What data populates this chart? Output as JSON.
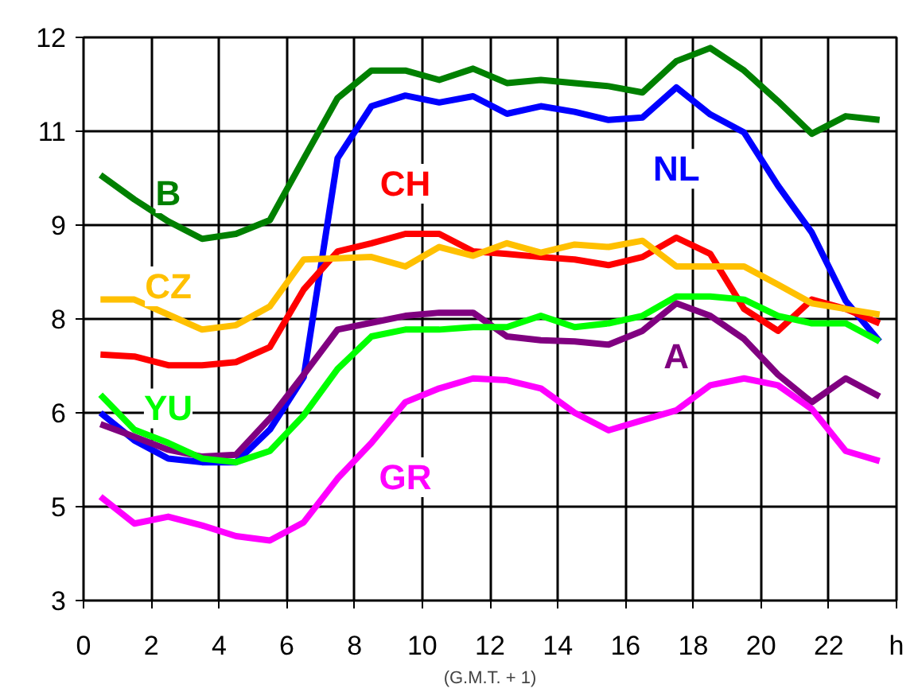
{
  "chart_data": {
    "type": "line",
    "xlabel": "(G.M.T. + 1)",
    "x": [
      0.5,
      1.5,
      2.5,
      3.5,
      4.5,
      5.5,
      6.5,
      7.5,
      8.5,
      9.5,
      10.5,
      11.5,
      12.5,
      13.5,
      14.5,
      15.5,
      16.5,
      17.5,
      18.5,
      19.5,
      20.5,
      21.5,
      22.5,
      23.5
    ],
    "xlim": [
      0,
      24
    ],
    "xticks": [
      0,
      2,
      4,
      6,
      8,
      10,
      12,
      14,
      16,
      18,
      20,
      22,
      {
        "value": 24,
        "label": "h"
      }
    ],
    "ylim": [
      3,
      12
    ],
    "yticks": [
      3,
      {
        "value": 4.5,
        "label": "5"
      },
      6,
      {
        "value": 7.5,
        "label": "8"
      },
      9,
      {
        "value": 10.5,
        "label": "11"
      },
      12
    ],
    "grid": true,
    "marker": "none",
    "line_style": "solid",
    "series": [
      {
        "name": "B",
        "color": "#008000",
        "values": [
          9.8,
          9.41,
          9.06,
          8.78,
          8.86,
          9.08,
          10.06,
          11.03,
          11.47,
          11.47,
          11.32,
          11.5,
          11.27,
          11.32,
          11.27,
          11.22,
          11.12,
          11.62,
          11.83,
          11.47,
          10.98,
          10.46,
          10.74,
          10.68
        ]
      },
      {
        "name": "NL",
        "color": "#0000ff",
        "values": [
          6.0,
          5.56,
          5.27,
          5.21,
          5.21,
          5.73,
          6.57,
          10.07,
          10.9,
          11.07,
          10.96,
          11.06,
          10.78,
          10.9,
          10.81,
          10.68,
          10.72,
          11.2,
          10.77,
          10.48,
          9.63,
          8.88,
          7.79,
          7.14
        ]
      },
      {
        "name": "CH",
        "color": "#ff0000",
        "values": [
          6.93,
          6.9,
          6.76,
          6.76,
          6.81,
          7.05,
          7.97,
          8.58,
          8.71,
          8.86,
          8.86,
          8.58,
          8.54,
          8.49,
          8.45,
          8.36,
          8.49,
          8.8,
          8.54,
          7.66,
          7.31,
          7.81,
          7.66,
          7.43
        ]
      },
      {
        "name": "CZ",
        "color": "#ffc000",
        "values": [
          7.81,
          7.81,
          7.57,
          7.33,
          7.4,
          7.7,
          8.45,
          8.47,
          8.49,
          8.34,
          8.65,
          8.51,
          8.71,
          8.56,
          8.69,
          8.65,
          8.75,
          8.34,
          8.34,
          8.34,
          8.05,
          7.75,
          7.66,
          7.57
        ]
      },
      {
        "name": "A",
        "color": "#800080",
        "values": [
          5.82,
          5.62,
          5.41,
          5.3,
          5.33,
          5.91,
          6.61,
          7.33,
          7.44,
          7.55,
          7.6,
          7.6,
          7.22,
          7.16,
          7.14,
          7.09,
          7.31,
          7.75,
          7.55,
          7.18,
          6.61,
          6.17,
          6.55,
          6.26
        ]
      },
      {
        "name": "YU",
        "color": "#00ff00",
        "values": [
          6.29,
          5.73,
          5.52,
          5.27,
          5.21,
          5.39,
          5.96,
          6.7,
          7.22,
          7.33,
          7.33,
          7.37,
          7.37,
          7.55,
          7.37,
          7.43,
          7.55,
          7.86,
          7.86,
          7.81,
          7.55,
          7.43,
          7.43,
          7.14
        ]
      },
      {
        "name": "GR",
        "color": "#ff00ff",
        "values": [
          4.66,
          4.23,
          4.34,
          4.2,
          4.03,
          3.96,
          4.25,
          4.95,
          5.52,
          6.17,
          6.39,
          6.55,
          6.52,
          6.39,
          6.0,
          5.72,
          5.88,
          6.04,
          6.44,
          6.55,
          6.44,
          6.06,
          5.39,
          5.23
        ]
      }
    ]
  }
}
